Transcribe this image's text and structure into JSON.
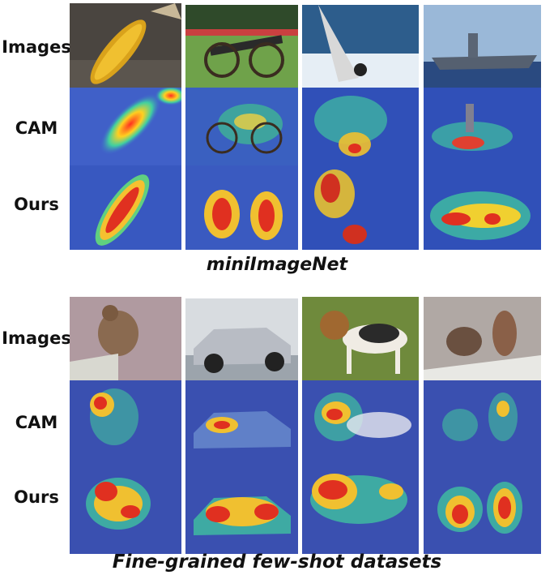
{
  "sections": [
    {
      "caption": "miniImageNet",
      "row_labels": [
        "Images",
        "CAM",
        "Ours"
      ],
      "columns": [
        "corn-cob",
        "cannon",
        "windsurfer",
        "aircraft-carrier"
      ]
    },
    {
      "caption": "Fine-grained few-shot datasets",
      "row_labels": [
        "Images",
        "CAM",
        "Ours"
      ],
      "columns": [
        "finch",
        "sedan-car",
        "beagle-dog",
        "two-birds"
      ]
    }
  ],
  "row_types": [
    "image",
    "cam-heatmap",
    "ours-heatmap"
  ]
}
